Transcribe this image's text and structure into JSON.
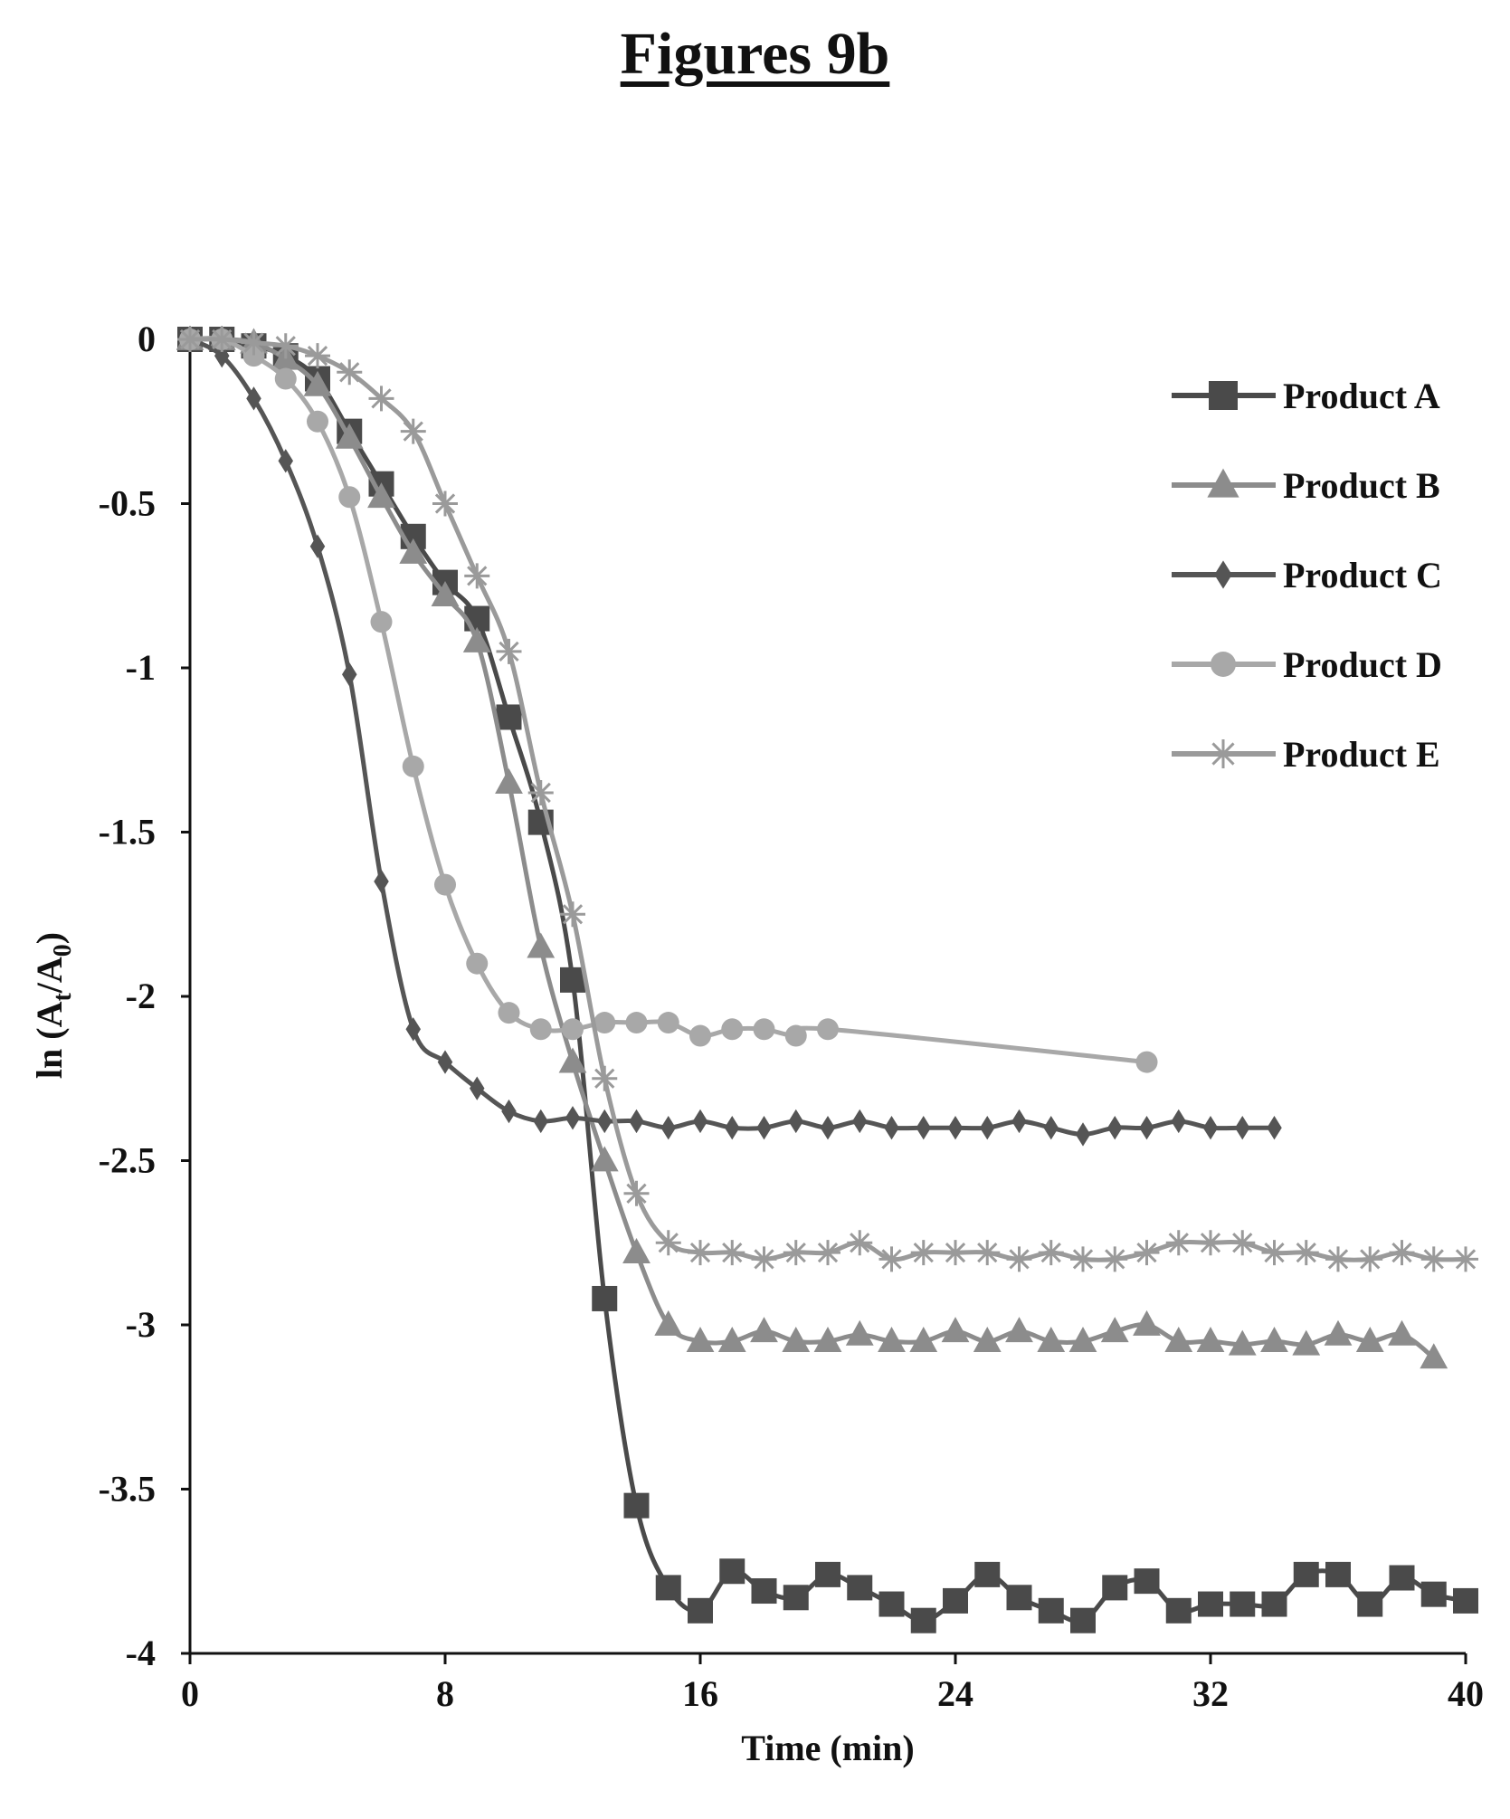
{
  "figure_title": "Figures 9b",
  "chart_data": {
    "type": "line",
    "title": "",
    "xlabel": "Time (min)",
    "ylabel": "ln (Aₜ/A₀)",
    "ylabel_parts": {
      "main": "ln (A",
      "sub1": "t",
      "mid": "/A",
      "sub2": "0",
      "end": ")"
    },
    "xlim": [
      0,
      40
    ],
    "ylim": [
      -4,
      0
    ],
    "x_ticks": [
      0,
      8,
      16,
      24,
      32,
      40
    ],
    "x_tick_labels": [
      "0",
      "8",
      "16",
      "24",
      "32",
      "40"
    ],
    "y_ticks": [
      0,
      -0.5,
      -1,
      -1.5,
      -2,
      -2.5,
      -3,
      -3.5,
      -4
    ],
    "y_tick_labels": [
      "0",
      "-0.5",
      "-1",
      "-1.5",
      "-2",
      "-2.5",
      "-3",
      "-3.5",
      "-4"
    ],
    "grid": false,
    "legend_position": "top-right",
    "series": [
      {
        "name": "Product A",
        "marker": "square",
        "color": "#4a4a4a",
        "x": [
          0,
          1,
          2,
          3,
          4,
          5,
          6,
          7,
          8,
          9,
          10,
          11,
          12,
          13,
          14,
          15,
          16,
          17,
          18,
          19,
          20,
          21,
          22,
          23,
          24,
          25,
          26,
          27,
          28,
          29,
          30,
          31,
          32,
          33,
          34,
          35,
          36,
          37,
          38,
          39,
          40
        ],
        "y": [
          0,
          0,
          -0.02,
          -0.05,
          -0.12,
          -0.28,
          -0.44,
          -0.6,
          -0.74,
          -0.85,
          -1.15,
          -1.47,
          -1.95,
          -2.92,
          -3.55,
          -3.8,
          -3.87,
          -3.75,
          -3.81,
          -3.83,
          -3.76,
          -3.8,
          -3.85,
          -3.9,
          -3.84,
          -3.76,
          -3.83,
          -3.87,
          -3.9,
          -3.8,
          -3.78,
          -3.87,
          -3.85,
          -3.85,
          -3.85,
          -3.76,
          -3.76,
          -3.85,
          -3.77,
          -3.82,
          -3.84
        ]
      },
      {
        "name": "Product B",
        "marker": "triangle",
        "color": "#8c8c8c",
        "x": [
          0,
          1,
          2,
          3,
          4,
          5,
          6,
          7,
          8,
          9,
          10,
          11,
          12,
          13,
          14,
          15,
          16,
          17,
          18,
          19,
          20,
          21,
          22,
          23,
          24,
          25,
          26,
          27,
          28,
          29,
          30,
          31,
          32,
          33,
          34,
          35,
          36,
          37,
          38,
          39
        ],
        "y": [
          0,
          0,
          -0.01,
          -0.06,
          -0.14,
          -0.3,
          -0.48,
          -0.65,
          -0.78,
          -0.92,
          -1.35,
          -1.85,
          -2.2,
          -2.5,
          -2.78,
          -3.0,
          -3.05,
          -3.05,
          -3.02,
          -3.05,
          -3.05,
          -3.03,
          -3.05,
          -3.05,
          -3.02,
          -3.05,
          -3.02,
          -3.05,
          -3.05,
          -3.02,
          -3.0,
          -3.05,
          -3.05,
          -3.06,
          -3.05,
          -3.06,
          -3.03,
          -3.05,
          -3.03,
          -3.1
        ]
      },
      {
        "name": "Product C",
        "marker": "diamond",
        "color": "#555555",
        "x": [
          0,
          1,
          2,
          3,
          4,
          5,
          6,
          7,
          8,
          9,
          10,
          11,
          12,
          13,
          14,
          15,
          16,
          17,
          18,
          19,
          20,
          21,
          22,
          23,
          24,
          25,
          26,
          27,
          28,
          29,
          30,
          31,
          32,
          33,
          34
        ],
        "y": [
          0,
          -0.05,
          -0.18,
          -0.37,
          -0.63,
          -1.02,
          -1.65,
          -2.1,
          -2.2,
          -2.28,
          -2.35,
          -2.38,
          -2.37,
          -2.38,
          -2.38,
          -2.4,
          -2.38,
          -2.4,
          -2.4,
          -2.38,
          -2.4,
          -2.38,
          -2.4,
          -2.4,
          -2.4,
          -2.4,
          -2.38,
          -2.4,
          -2.42,
          -2.4,
          -2.4,
          -2.38,
          -2.4,
          -2.4,
          -2.4
        ]
      },
      {
        "name": "Product D",
        "marker": "circle",
        "color": "#a8a8a8",
        "x": [
          0,
          1,
          2,
          3,
          4,
          5,
          6,
          7,
          8,
          9,
          10,
          11,
          12,
          13,
          14,
          15,
          16,
          17,
          18,
          19,
          20,
          30
        ],
        "y": [
          0,
          0,
          -0.05,
          -0.12,
          -0.25,
          -0.48,
          -0.86,
          -1.3,
          -1.66,
          -1.9,
          -2.05,
          -2.1,
          -2.1,
          -2.08,
          -2.08,
          -2.08,
          -2.12,
          -2.1,
          -2.1,
          -2.12,
          -2.1,
          -2.2
        ]
      },
      {
        "name": "Product E",
        "marker": "asterisk",
        "color": "#9a9a9a",
        "x": [
          0,
          1,
          2,
          3,
          4,
          5,
          6,
          7,
          8,
          9,
          10,
          11,
          12,
          13,
          14,
          15,
          16,
          17,
          18,
          19,
          20,
          21,
          22,
          23,
          24,
          25,
          26,
          27,
          28,
          29,
          30,
          31,
          32,
          33,
          34,
          35,
          36,
          37,
          38,
          39,
          40
        ],
        "y": [
          0,
          0,
          -0.01,
          -0.02,
          -0.05,
          -0.1,
          -0.18,
          -0.28,
          -0.5,
          -0.72,
          -0.95,
          -1.38,
          -1.75,
          -2.25,
          -2.6,
          -2.75,
          -2.78,
          -2.78,
          -2.8,
          -2.78,
          -2.78,
          -2.75,
          -2.8,
          -2.78,
          -2.78,
          -2.78,
          -2.8,
          -2.78,
          -2.8,
          -2.8,
          -2.78,
          -2.75,
          -2.75,
          -2.75,
          -2.78,
          -2.78,
          -2.8,
          -2.8,
          -2.78,
          -2.8,
          -2.8
        ]
      }
    ]
  }
}
